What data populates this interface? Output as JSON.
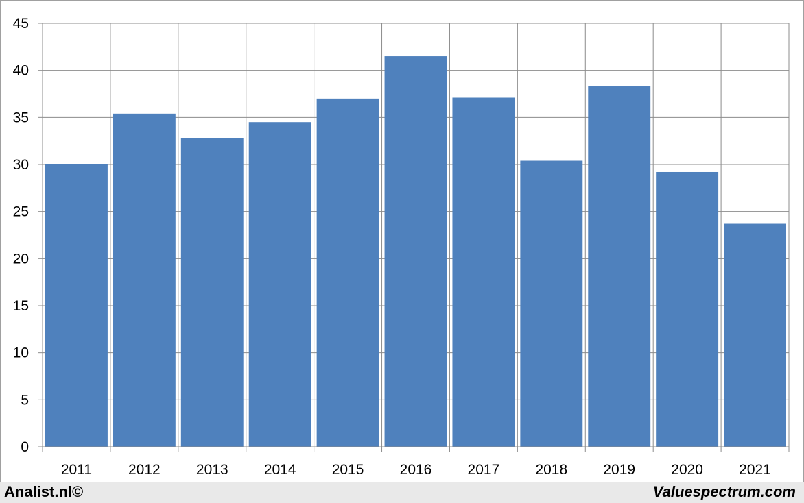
{
  "chart_data": {
    "type": "bar",
    "categories": [
      "2011",
      "2012",
      "2013",
      "2014",
      "2015",
      "2016",
      "2017",
      "2018",
      "2019",
      "2020",
      "2021"
    ],
    "values": [
      30.0,
      35.4,
      32.8,
      34.5,
      37.0,
      41.5,
      37.1,
      30.4,
      38.3,
      29.2,
      23.7
    ],
    "title": "",
    "xlabel": "",
    "ylabel": "",
    "ylim": [
      0,
      45
    ],
    "yticks": [
      "0",
      "5",
      "10",
      "15",
      "20",
      "25",
      "30",
      "35",
      "40",
      "45"
    ],
    "grid": true,
    "bar_color": "#4f81bd"
  },
  "footer": {
    "left": "Analist.nl©",
    "right": "Valuespectrum.com"
  }
}
